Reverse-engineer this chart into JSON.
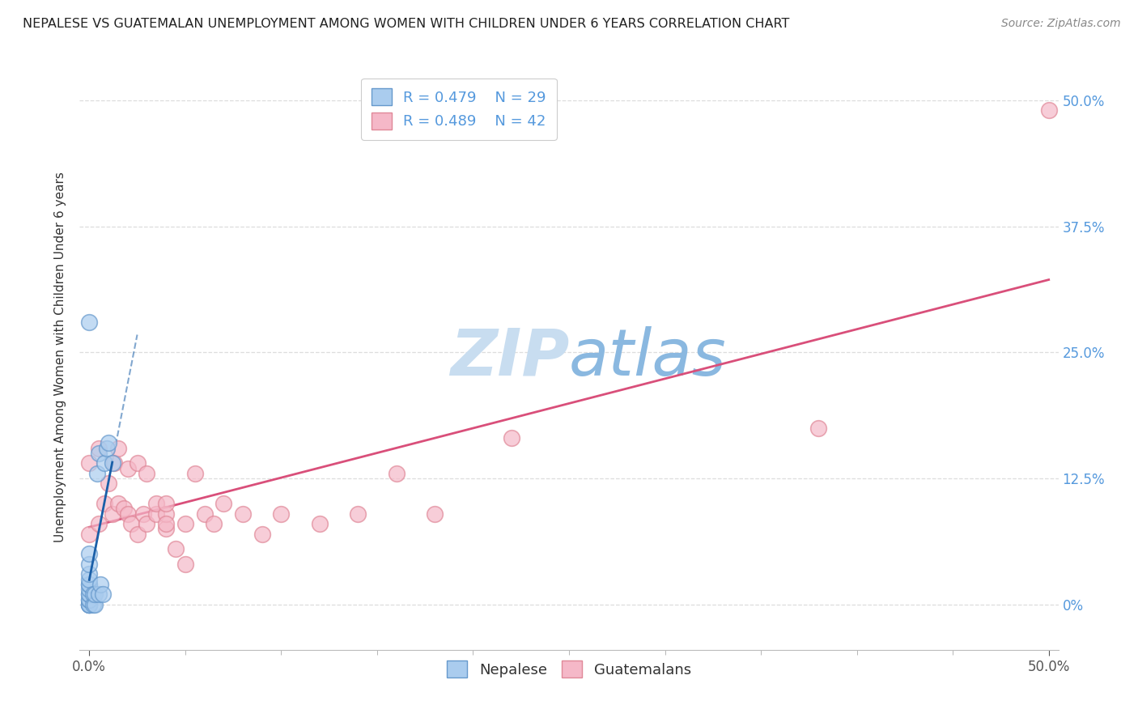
{
  "title": "NEPALESE VS GUATEMALAN UNEMPLOYMENT AMONG WOMEN WITH CHILDREN UNDER 6 YEARS CORRELATION CHART",
  "source": "Source: ZipAtlas.com",
  "ylabel": "Unemployment Among Women with Children Under 6 years",
  "xlim": [
    -0.005,
    0.505
  ],
  "ylim": [
    -0.045,
    0.535
  ],
  "nepalese_color": "#aaccee",
  "nepalese_edge_color": "#6699cc",
  "guatemalan_color": "#f5b8c8",
  "guatemalan_edge_color": "#e08898",
  "nepalese_R": 0.479,
  "nepalese_N": 29,
  "guatemalan_R": 0.489,
  "guatemalan_N": 42,
  "nepalese_scatter_x": [
    0.0,
    0.0,
    0.0,
    0.0,
    0.0,
    0.0,
    0.0,
    0.0,
    0.0,
    0.0,
    0.0,
    0.0,
    0.0,
    0.0,
    0.0,
    0.0,
    0.002,
    0.002,
    0.003,
    0.003,
    0.004,
    0.005,
    0.005,
    0.006,
    0.007,
    0.008,
    0.009,
    0.01,
    0.012
  ],
  "nepalese_scatter_y": [
    0.0,
    0.0,
    0.0,
    0.0,
    0.005,
    0.005,
    0.01,
    0.01,
    0.015,
    0.02,
    0.02,
    0.025,
    0.03,
    0.04,
    0.05,
    0.28,
    0.0,
    0.01,
    0.0,
    0.01,
    0.13,
    0.01,
    0.15,
    0.02,
    0.01,
    0.14,
    0.155,
    0.16,
    0.14
  ],
  "guatemalan_scatter_x": [
    0.0,
    0.0,
    0.005,
    0.005,
    0.008,
    0.01,
    0.012,
    0.013,
    0.015,
    0.015,
    0.018,
    0.02,
    0.02,
    0.022,
    0.025,
    0.025,
    0.028,
    0.03,
    0.03,
    0.035,
    0.035,
    0.04,
    0.04,
    0.04,
    0.04,
    0.045,
    0.05,
    0.05,
    0.055,
    0.06,
    0.065,
    0.07,
    0.08,
    0.09,
    0.1,
    0.12,
    0.14,
    0.16,
    0.18,
    0.22,
    0.38,
    0.5
  ],
  "guatemalan_scatter_y": [
    0.07,
    0.14,
    0.08,
    0.155,
    0.1,
    0.12,
    0.09,
    0.14,
    0.1,
    0.155,
    0.095,
    0.09,
    0.135,
    0.08,
    0.07,
    0.14,
    0.09,
    0.08,
    0.13,
    0.09,
    0.1,
    0.075,
    0.09,
    0.1,
    0.08,
    0.055,
    0.08,
    0.04,
    0.13,
    0.09,
    0.08,
    0.1,
    0.09,
    0.07,
    0.09,
    0.08,
    0.09,
    0.13,
    0.09,
    0.165,
    0.175,
    0.49
  ],
  "nepalese_line_color": "#1a5fa8",
  "guatemalan_line_color": "#d94f7a",
  "watermark_zip_color": "#c5d8f0",
  "watermark_atlas_color": "#8ab0d8",
  "background_color": "#ffffff",
  "grid_color": "#dddddd",
  "right_tick_color": "#5599dd",
  "y_tick_vals": [
    0.0,
    0.125,
    0.25,
    0.375,
    0.5
  ],
  "y_tick_labels": [
    "0%",
    "12.5%",
    "25.0%",
    "37.5%",
    "50.0%"
  ]
}
